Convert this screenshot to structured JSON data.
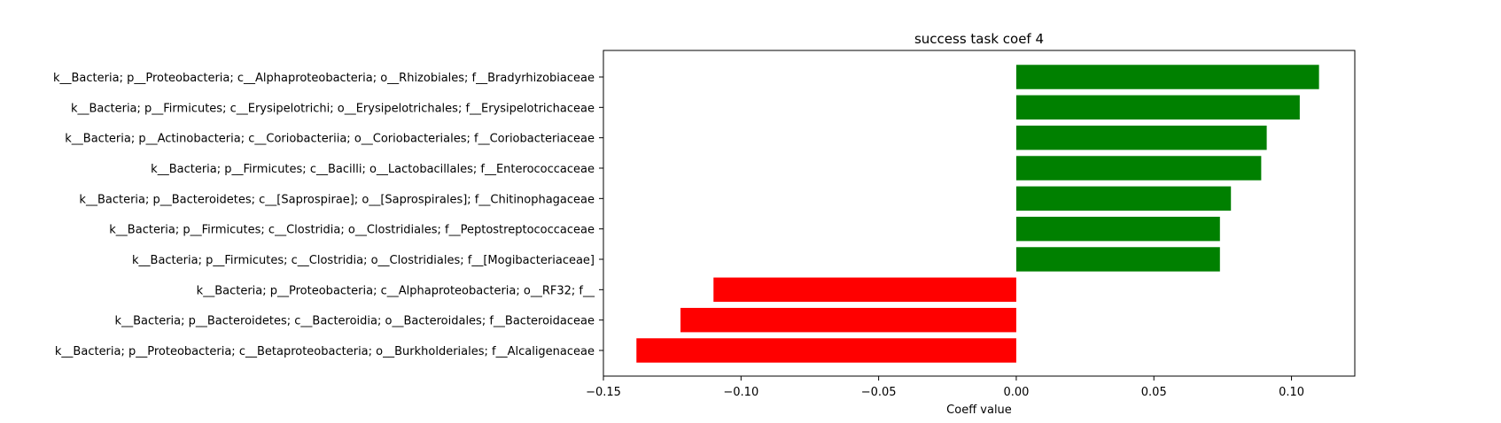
{
  "chart_data": {
    "type": "bar",
    "orientation": "horizontal",
    "title": "success task coef 4",
    "xlabel": "Coeff value",
    "ylabel": "",
    "xlim": [
      -0.15,
      0.123
    ],
    "xticks": [
      -0.15,
      -0.1,
      -0.05,
      0.0,
      0.05,
      0.1
    ],
    "xtick_labels": [
      "−0.15",
      "−0.10",
      "−0.05",
      "0.00",
      "0.05",
      "0.10"
    ],
    "grid": false,
    "positive_color": "#008000",
    "negative_color": "#ff0000",
    "categories": [
      "k__Bacteria; p__Proteobacteria; c__Alphaproteobacteria; o__Rhizobiales; f__Bradyrhizobiaceae",
      "k__Bacteria; p__Firmicutes; c__Erysipelotrichi; o__Erysipelotrichales; f__Erysipelotrichaceae",
      "k__Bacteria; p__Actinobacteria; c__Coriobacteriia; o__Coriobacteriales; f__Coriobacteriaceae",
      "k__Bacteria; p__Firmicutes; c__Bacilli; o__Lactobacillales; f__Enterococcaceae",
      "k__Bacteria; p__Bacteroidetes; c__[Saprospirae]; o__[Saprospirales]; f__Chitinophagaceae",
      "k__Bacteria; p__Firmicutes; c__Clostridia; o__Clostridiales; f__Peptostreptococcaceae",
      "k__Bacteria; p__Firmicutes; c__Clostridia; o__Clostridiales; f__[Mogibacteriaceae]",
      "k__Bacteria; p__Proteobacteria; c__Alphaproteobacteria; o__RF32; f__",
      "k__Bacteria; p__Bacteroidetes; c__Bacteroidia; o__Bacteroidales; f__Bacteroidaceae",
      "k__Bacteria; p__Proteobacteria; c__Betaproteobacteria; o__Burkholderiales; f__Alcaligenaceae"
    ],
    "values": [
      0.11,
      0.103,
      0.091,
      0.089,
      0.078,
      0.074,
      0.074,
      -0.11,
      -0.122,
      -0.138
    ]
  }
}
